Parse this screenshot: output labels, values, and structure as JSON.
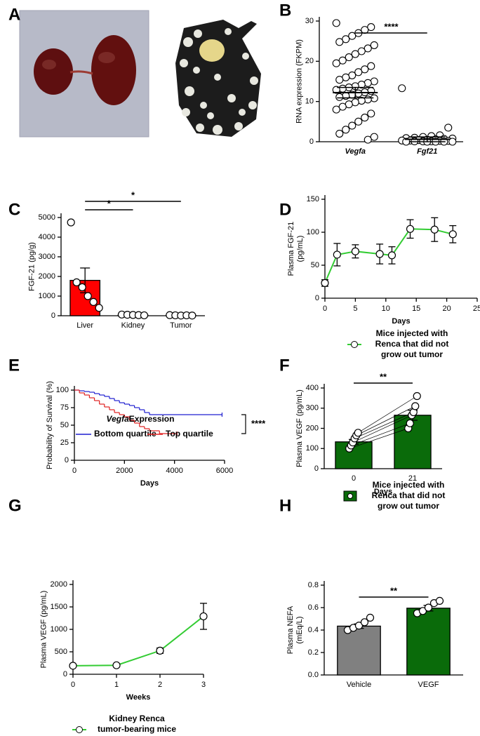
{
  "chart_data": [
    {
      "panel_label": "A",
      "type": "image"
    },
    {
      "panel_label": "B",
      "type": "strip",
      "ylabel": "RNA expression (FKPM)",
      "categories": [
        "Vegfa",
        "Fgf21"
      ],
      "groups": [
        {
          "values": [
            29.5,
            28.5,
            27.8,
            27,
            26.3,
            25.5,
            24.8,
            24,
            23.2,
            22.5,
            21.8,
            21,
            20.2,
            19.5,
            18.8,
            18,
            17.3,
            16.5,
            16,
            15.4,
            15,
            14.6,
            14.2,
            13.8,
            13.5,
            13.2,
            12.9,
            12.6,
            12.3,
            12,
            11.7,
            11.4,
            11.1,
            10.8,
            10.5,
            10.2,
            9.8,
            9.3,
            8.7,
            8,
            7,
            6,
            5,
            4,
            3,
            2,
            1.2,
            0.5
          ],
          "mean": 12.2,
          "error": 1.3
        },
        {
          "values": [
            13.3,
            3.5,
            1.6,
            1.4,
            1.2,
            1,
            0.9,
            0.8,
            0.7,
            0.6,
            0.5,
            0.4,
            0.3,
            0.3,
            0.2,
            0.2,
            0.1,
            0.1,
            0.1,
            0,
            0,
            0,
            0,
            0
          ],
          "mean": 0.6,
          "error": 0.6
        }
      ],
      "ylim": [
        0,
        30
      ],
      "yticks": [
        0,
        10,
        20,
        30
      ],
      "annotations": [
        "****"
      ]
    },
    {
      "panel_label": "C",
      "type": "bar",
      "ylabel": "FGF-21 (pg/g)",
      "categories": [
        "Liver",
        "Kidney",
        "Tumor"
      ],
      "values": [
        1800,
        40,
        15
      ],
      "errors": [
        630,
        8,
        5
      ],
      "colors": [
        "#ff0000",
        "#ffffff",
        "#ffffff"
      ],
      "points": [
        [
          4750,
          1700,
          1450,
          1000,
          700,
          400
        ],
        [
          60,
          50,
          40,
          30,
          20
        ],
        [
          30,
          20,
          10,
          20,
          10
        ]
      ],
      "ylim": [
        0,
        5000
      ],
      "yticks": [
        0,
        1000,
        2000,
        3000,
        4000,
        5000
      ],
      "annotations": [
        "*",
        "*"
      ]
    },
    {
      "panel_label": "D",
      "type": "line",
      "ylabel": [
        "Plasma FGF-21",
        "(pg/mL)"
      ],
      "xlabel": "Days",
      "x": [
        0,
        2,
        5,
        9,
        11,
        14,
        18,
        21
      ],
      "values": [
        23,
        66,
        71,
        67,
        65,
        105,
        104,
        97
      ],
      "errors": [
        5,
        17,
        10,
        15,
        13,
        14,
        18,
        13
      ],
      "color": "#33cc33",
      "xlim": [
        0,
        25
      ],
      "xticks": [
        0,
        5,
        10,
        15,
        20,
        25
      ],
      "ylim": [
        0,
        150
      ],
      "yticks": [
        0,
        50,
        100,
        150
      ],
      "legend": [
        "Mice injected with",
        "Renca that did not",
        "grow out tumor"
      ]
    },
    {
      "panel_label": "E",
      "type": "step",
      "ylabel": "Probability of Survival (%)",
      "xlabel": "Days",
      "series": [
        {
          "name": "Bottom quartile",
          "color": "#1f1fd0",
          "x": [
            0,
            200,
            400,
            600,
            800,
            1000,
            1200,
            1400,
            1600,
            1800,
            2000,
            2200,
            2400,
            2600,
            2800,
            3000,
            5900
          ],
          "values": [
            100,
            99,
            98,
            97,
            95,
            93,
            91,
            88,
            85,
            82,
            80,
            78,
            75,
            72,
            68,
            65,
            65
          ]
        },
        {
          "name": "Top quartile",
          "color": "#e02020",
          "x": [
            0,
            200,
            400,
            600,
            800,
            1000,
            1200,
            1400,
            1600,
            1800,
            2000,
            2200,
            2400,
            2600,
            2800,
            3000,
            3400,
            4100
          ],
          "values": [
            100,
            96,
            93,
            89,
            85,
            80,
            76,
            72,
            68,
            65,
            62,
            57,
            53,
            48,
            45,
            42,
            38,
            38
          ]
        }
      ],
      "xlim": [
        0,
        6000
      ],
      "xticks": [
        0,
        2000,
        4000,
        6000
      ],
      "ylim": [
        0,
        100
      ],
      "yticks": [
        0,
        25,
        50,
        75,
        100
      ],
      "legend_title": [
        "Vegfa",
        "Expression"
      ],
      "annotations": [
        "****"
      ]
    },
    {
      "panel_label": "F",
      "type": "bar",
      "ylabel": "Plasma VEGF (pg/mL)",
      "xlabel": "Days",
      "categories": [
        "0",
        "21"
      ],
      "values": [
        133,
        265
      ],
      "errors": [
        12,
        25
      ],
      "colors": [
        "#0a6b0a",
        "#0a6b0a"
      ],
      "paired": true,
      "points": [
        [
          100,
          115,
          130,
          150,
          165,
          178
        ],
        [
          200,
          225,
          265,
          280,
          310,
          360
        ]
      ],
      "ylim": [
        0,
        400
      ],
      "yticks": [
        0,
        100,
        200,
        300,
        400
      ],
      "annotations": [
        "**"
      ],
      "legend": [
        "Mice injected with",
        "Renca that did not",
        "grow out tumor"
      ]
    },
    {
      "panel_label": "G",
      "type": "line",
      "ylabel": "Plasma VEGF (pg/mL)",
      "xlabel": "Weeks",
      "x": [
        0,
        1,
        2,
        3
      ],
      "values": [
        190,
        200,
        525,
        1290
      ],
      "errors": [
        0,
        0,
        60,
        290
      ],
      "color": "#33cc33",
      "xlim": [
        0,
        3
      ],
      "xticks": [
        0,
        1,
        2,
        3
      ],
      "ylim": [
        0,
        2000
      ],
      "yticks": [
        0,
        500,
        1000,
        1500,
        2000
      ],
      "legend": [
        "Kidney Renca",
        "tumor-bearing mice"
      ]
    },
    {
      "panel_label": "H",
      "type": "bar",
      "ylabel": [
        "Plasma NEFA",
        "(mEq/L)"
      ],
      "categories": [
        "Vehicle",
        "VEGF"
      ],
      "values": [
        0.435,
        0.595
      ],
      "errors": [
        0.02,
        0.025
      ],
      "colors": [
        "#808080",
        "#0a6b0a"
      ],
      "points": [
        [
          0.4,
          0.42,
          0.44,
          0.47,
          0.51
        ],
        [
          0.55,
          0.57,
          0.6,
          0.64,
          0.66
        ]
      ],
      "ylim": [
        0,
        0.8
      ],
      "yticks": [
        {
          "value": 0,
          "label": "0.0"
        },
        {
          "value": 0.2,
          "label": "0.2"
        },
        {
          "value": 0.4,
          "label": "0.4"
        },
        {
          "value": 0.6,
          "label": "0.6"
        },
        {
          "value": 0.8,
          "label": "0.8"
        }
      ],
      "annotations": [
        "**"
      ]
    }
  ]
}
